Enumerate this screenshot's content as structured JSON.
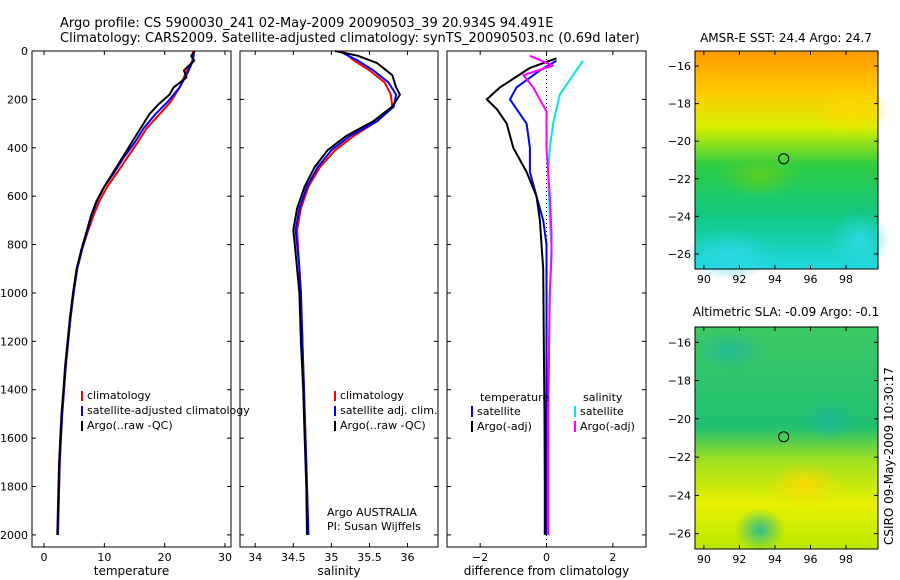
{
  "figure": {
    "title_line1": "Argo profile: CS 5900030_241 02-May-2009 20090503_39 20.934S 94.491E",
    "title_line2": "Climatology: CARS2009. Satellite-adjusted climatology: synTS_20090503.nc (0.69d later)",
    "side_stamp": "CSIRO 09-May-2009 10:30:17"
  },
  "colors": {
    "climatology": "#ff0000",
    "satellite": "#0000ff",
    "argo": "#000000",
    "sal_satellite": "#00e5e5",
    "sal_argo": "#ff00ff"
  },
  "chart_data": [
    {
      "type": "line",
      "id": "temperature",
      "xlabel": "temperature",
      "ylabel": "",
      "xlim": [
        -2,
        31
      ],
      "ylim": [
        2050,
        0
      ],
      "xticks": [
        0,
        10,
        20,
        30
      ],
      "yticks": [
        0,
        200,
        400,
        600,
        800,
        1000,
        1200,
        1400,
        1600,
        1800,
        2000
      ],
      "legend": [
        "climatology",
        "satellite-adjusted climatology",
        "Argo(..raw -QC)"
      ],
      "series": [
        {
          "name": "climatology",
          "color": "#ff0000",
          "points": [
            [
              24.7,
              0
            ],
            [
              24.6,
              40
            ],
            [
              23.5,
              90
            ],
            [
              22.5,
              150
            ],
            [
              21,
              210
            ],
            [
              19.2,
              260
            ],
            [
              17,
              320
            ],
            [
              15.5,
              380
            ],
            [
              13.8,
              440
            ],
            [
              12.2,
              500
            ],
            [
              10.5,
              560
            ],
            [
              9.2,
              620
            ],
            [
              8.2,
              680
            ],
            [
              7.2,
              750
            ],
            [
              6.3,
              820
            ],
            [
              5.5,
              900
            ],
            [
              4.9,
              1000
            ],
            [
              4.4,
              1100
            ],
            [
              4,
              1200
            ],
            [
              3.6,
              1300
            ],
            [
              3.3,
              1400
            ],
            [
              3,
              1500
            ],
            [
              2.8,
              1600
            ],
            [
              2.6,
              1700
            ],
            [
              2.5,
              1800
            ],
            [
              2.4,
              1900
            ],
            [
              2.3,
              2000
            ]
          ]
        },
        {
          "name": "satellite-adjusted climatology",
          "color": "#0000ff",
          "points": [
            [
              24.9,
              0
            ],
            [
              24.7,
              40
            ],
            [
              23.8,
              90
            ],
            [
              22.5,
              150
            ],
            [
              20.5,
              210
            ],
            [
              18.5,
              260
            ],
            [
              16.5,
              320
            ],
            [
              15,
              380
            ],
            [
              13.2,
              440
            ],
            [
              11.7,
              500
            ],
            [
              10,
              560
            ],
            [
              8.8,
              620
            ],
            [
              7.9,
              680
            ],
            [
              7.1,
              750
            ],
            [
              6.3,
              820
            ],
            [
              5.5,
              900
            ],
            [
              4.9,
              1000
            ],
            [
              4.4,
              1100
            ],
            [
              4,
              1200
            ],
            [
              3.6,
              1300
            ],
            [
              3.3,
              1400
            ],
            [
              3,
              1500
            ],
            [
              2.8,
              1600
            ],
            [
              2.6,
              1700
            ],
            [
              2.5,
              1800
            ],
            [
              2.4,
              1900
            ],
            [
              2.3,
              2000
            ]
          ]
        },
        {
          "name": "Argo(..raw -QC)",
          "color": "#000000",
          "points": [
            [
              25,
              0
            ],
            [
              24.4,
              20
            ],
            [
              24.9,
              40
            ],
            [
              23.2,
              80
            ],
            [
              23.6,
              110
            ],
            [
              21.5,
              150
            ],
            [
              20.8,
              180
            ],
            [
              19,
              220
            ],
            [
              17.5,
              260
            ],
            [
              16,
              320
            ],
            [
              14.5,
              380
            ],
            [
              13,
              440
            ],
            [
              11.5,
              500
            ],
            [
              10,
              560
            ],
            [
              8.7,
              620
            ],
            [
              7.8,
              680
            ],
            [
              7,
              750
            ],
            [
              6.2,
              820
            ],
            [
              5.4,
              900
            ],
            [
              4.8,
              1000
            ],
            [
              4.3,
              1100
            ],
            [
              3.9,
              1200
            ],
            [
              3.5,
              1300
            ],
            [
              3.2,
              1400
            ],
            [
              2.9,
              1500
            ],
            [
              2.7,
              1600
            ],
            [
              2.5,
              1700
            ],
            [
              2.4,
              1800
            ],
            [
              2.3,
              1900
            ],
            [
              2.2,
              2000
            ]
          ]
        }
      ]
    },
    {
      "type": "line",
      "id": "salinity",
      "xlabel": "salinity",
      "ylabel": "",
      "xlim": [
        33.8,
        36.4
      ],
      "ylim": [
        2050,
        0
      ],
      "xticks": [
        34,
        34.5,
        35,
        35.5,
        36
      ],
      "yticks": [
        0,
        200,
        400,
        600,
        800,
        1000,
        1200,
        1400,
        1600,
        1800,
        2000
      ],
      "legend": [
        "climatology",
        "satellite adj. clim.",
        "Argo(..raw -QC)"
      ],
      "annotation": [
        "Argo AUSTRALIA",
        "PI: Susan Wijffels"
      ],
      "series": [
        {
          "name": "climatology",
          "color": "#ff0000",
          "points": [
            [
              35.15,
              0
            ],
            [
              35.3,
              40
            ],
            [
              35.5,
              80
            ],
            [
              35.7,
              130
            ],
            [
              35.78,
              180
            ],
            [
              35.8,
              230
            ],
            [
              35.6,
              290
            ],
            [
              35.3,
              350
            ],
            [
              35.05,
              410
            ],
            [
              34.85,
              480
            ],
            [
              34.7,
              560
            ],
            [
              34.6,
              650
            ],
            [
              34.55,
              740
            ],
            [
              34.56,
              800
            ],
            [
              34.58,
              900
            ],
            [
              34.6,
              1000
            ],
            [
              34.62,
              1200
            ],
            [
              34.64,
              1400
            ],
            [
              34.66,
              1600
            ],
            [
              34.68,
              1800
            ],
            [
              34.69,
              2000
            ]
          ]
        },
        {
          "name": "satellite adj. clim.",
          "color": "#0000ff",
          "points": [
            [
              35.1,
              0
            ],
            [
              35.35,
              40
            ],
            [
              35.55,
              80
            ],
            [
              35.75,
              130
            ],
            [
              35.85,
              180
            ],
            [
              35.82,
              230
            ],
            [
              35.6,
              290
            ],
            [
              35.25,
              350
            ],
            [
              35,
              410
            ],
            [
              34.82,
              480
            ],
            [
              34.68,
              560
            ],
            [
              34.58,
              650
            ],
            [
              34.53,
              740
            ],
            [
              34.55,
              800
            ],
            [
              34.58,
              900
            ],
            [
              34.6,
              1000
            ],
            [
              34.62,
              1200
            ],
            [
              34.64,
              1400
            ],
            [
              34.66,
              1600
            ],
            [
              34.68,
              1800
            ],
            [
              34.7,
              2000
            ]
          ]
        },
        {
          "name": "Argo(..raw -QC)",
          "color": "#000000",
          "points": [
            [
              35.05,
              0
            ],
            [
              35.35,
              20
            ],
            [
              35.6,
              50
            ],
            [
              35.8,
              100
            ],
            [
              35.85,
              150
            ],
            [
              35.9,
              180
            ],
            [
              35.8,
              230
            ],
            [
              35.55,
              290
            ],
            [
              35.2,
              350
            ],
            [
              34.95,
              410
            ],
            [
              34.78,
              480
            ],
            [
              34.65,
              560
            ],
            [
              34.55,
              650
            ],
            [
              34.5,
              740
            ],
            [
              34.52,
              800
            ],
            [
              34.55,
              900
            ],
            [
              34.58,
              1000
            ],
            [
              34.6,
              1200
            ],
            [
              34.63,
              1400
            ],
            [
              34.65,
              1600
            ],
            [
              34.67,
              1800
            ],
            [
              34.68,
              2000
            ]
          ]
        }
      ]
    },
    {
      "type": "line",
      "id": "difference",
      "xlabel": "difference from climatology",
      "ylabel": "",
      "xlim": [
        -3,
        3
      ],
      "ylim": [
        2050,
        0
      ],
      "xticks": [
        -2,
        0,
        2
      ],
      "yticks": [
        0,
        200,
        400,
        600,
        800,
        1000,
        1200,
        1400,
        1600,
        1800,
        2000
      ],
      "legend_left_title": "temperature",
      "legend_right_title": "salinity",
      "legend_left": [
        "satellite",
        "Argo(-adj)"
      ],
      "legend_right": [
        "satellite",
        "Argo(-adj)"
      ],
      "series": [
        {
          "name": "temperature satellite",
          "color": "#0000ff",
          "points": [
            [
              0.3,
              40
            ],
            [
              -0.2,
              80
            ],
            [
              -0.9,
              150
            ],
            [
              -1.1,
              200
            ],
            [
              -0.6,
              300
            ],
            [
              -0.5,
              400
            ],
            [
              -0.5,
              500
            ],
            [
              -0.3,
              600
            ],
            [
              -0.1,
              700
            ],
            [
              0,
              800
            ],
            [
              0,
              1000
            ],
            [
              0,
              1500
            ],
            [
              0,
              2000
            ]
          ]
        },
        {
          "name": "temperature Argo(-adj)",
          "color": "#000000",
          "points": [
            [
              0.3,
              30
            ],
            [
              -0.5,
              70
            ],
            [
              -1.4,
              150
            ],
            [
              -1.8,
              200
            ],
            [
              -1.5,
              240
            ],
            [
              -1.2,
              300
            ],
            [
              -1,
              400
            ],
            [
              -0.6,
              500
            ],
            [
              -0.3,
              600
            ],
            [
              -0.2,
              700
            ],
            [
              -0.15,
              800
            ],
            [
              -0.1,
              900
            ],
            [
              -0.08,
              1200
            ],
            [
              -0.06,
              1500
            ],
            [
              -0.05,
              1800
            ],
            [
              -0.05,
              2000
            ]
          ]
        },
        {
          "name": "salinity satellite",
          "color": "#00e5e5",
          "points": [
            [
              1.1,
              40
            ],
            [
              0.8,
              100
            ],
            [
              0.4,
              180
            ],
            [
              0.2,
              300
            ],
            [
              0.1,
              400
            ],
            [
              0.05,
              500
            ],
            [
              0.1,
              700
            ],
            [
              0.15,
              800
            ],
            [
              0.1,
              1000
            ],
            [
              0.05,
              1500
            ],
            [
              0.05,
              2000
            ]
          ]
        },
        {
          "name": "salinity Argo(-adj)",
          "color": "#ff00ff",
          "points": [
            [
              -0.5,
              20
            ],
            [
              0.2,
              60
            ],
            [
              -0.7,
              100
            ],
            [
              -0.4,
              150
            ],
            [
              0,
              250
            ],
            [
              0,
              400
            ],
            [
              0.1,
              600
            ],
            [
              0.15,
              750
            ],
            [
              0.15,
              850
            ],
            [
              0.1,
              1000
            ],
            [
              0.05,
              1500
            ],
            [
              0.05,
              2000
            ]
          ]
        }
      ]
    },
    {
      "type": "heatmap",
      "id": "sst_map",
      "title": "AMSR-E SST: 24.4 Argo: 24.7",
      "xlim": [
        89.5,
        99.8
      ],
      "ylim": [
        -26.8,
        -15.2
      ],
      "xticks": [
        90,
        92,
        94,
        96,
        98
      ],
      "yticks": [
        -16,
        -18,
        -20,
        -22,
        -24,
        -26
      ],
      "marker": {
        "lon": 94.491,
        "lat": -20.934
      }
    },
    {
      "type": "heatmap",
      "id": "sla_map",
      "title": "Altimetric SLA: -0.09 Argo: -0.1",
      "xlim": [
        89.5,
        99.8
      ],
      "ylim": [
        -26.8,
        -15.2
      ],
      "xticks": [
        90,
        92,
        94,
        96,
        98
      ],
      "yticks": [
        -16,
        -18,
        -20,
        -22,
        -24,
        -26
      ],
      "marker": {
        "lon": 94.491,
        "lat": -20.934
      }
    }
  ]
}
